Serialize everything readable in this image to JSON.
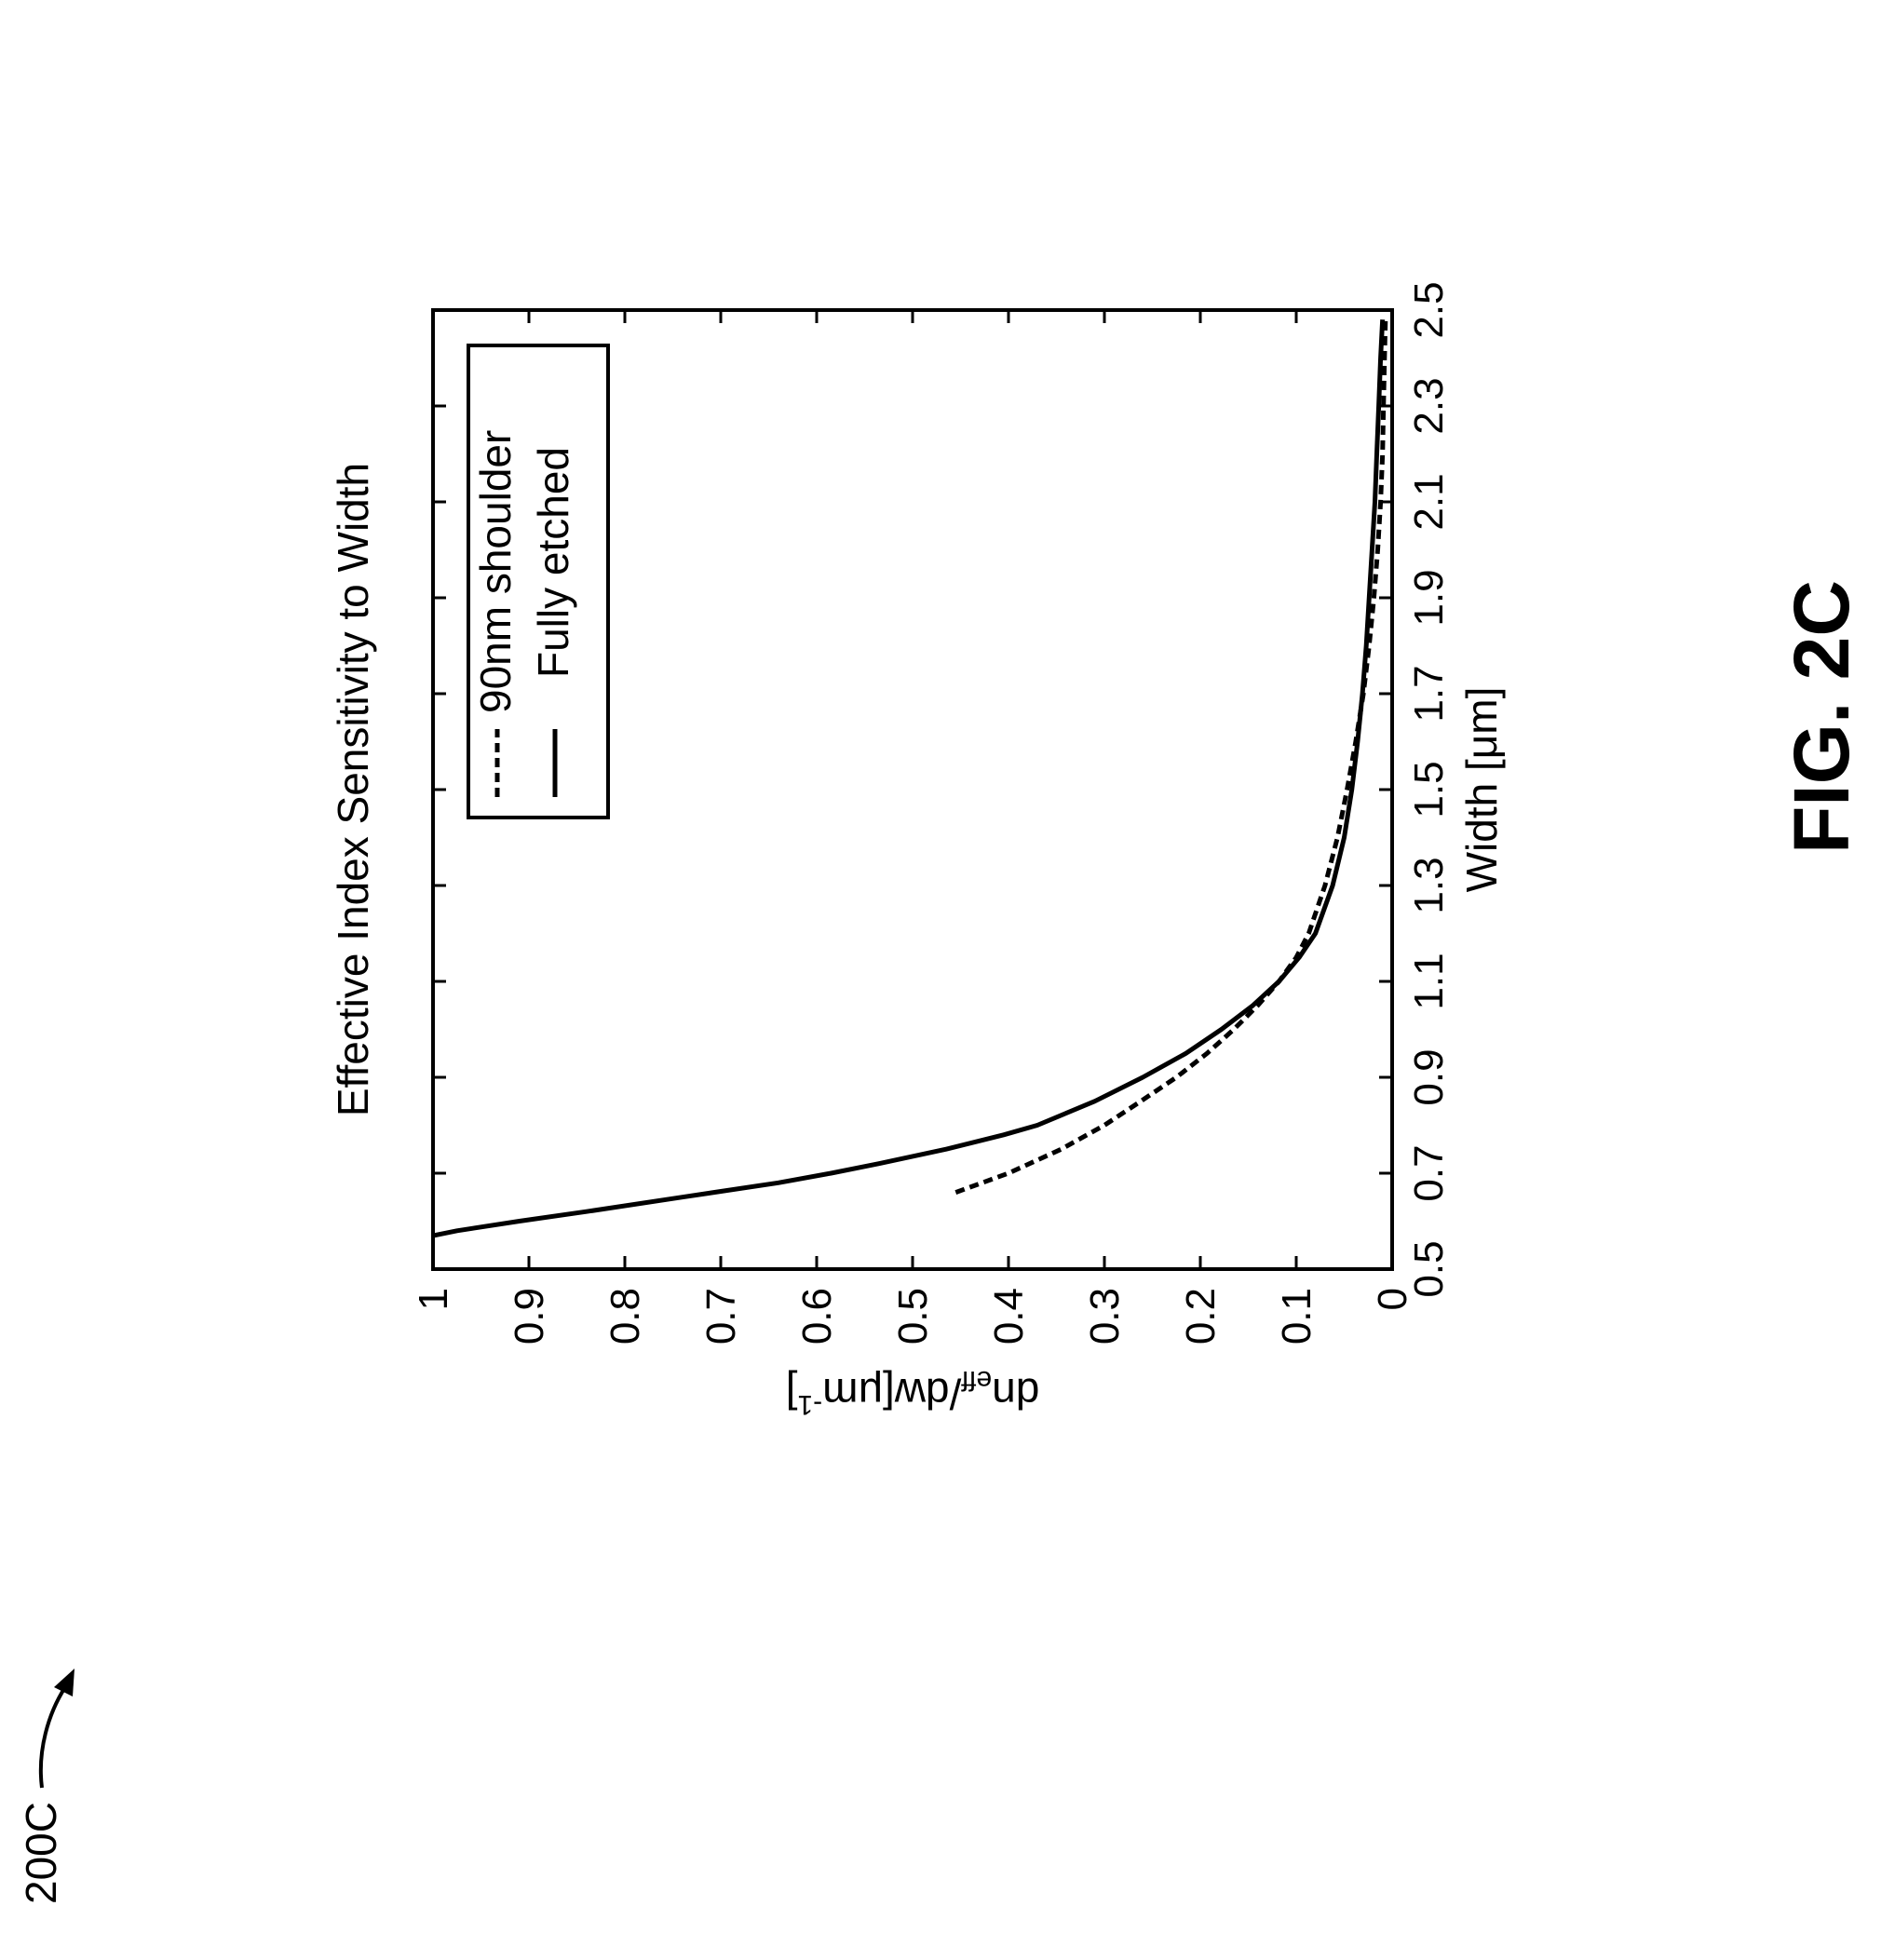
{
  "chart_data": {
    "type": "line",
    "title": "Effective Index Sensitivity to Width",
    "xlabel": "Width [μm]",
    "ylabel": {
      "base": "dn",
      "sub": "eff",
      "mid": "/dw[μm",
      "sup": "-1",
      "end": "]"
    },
    "xlim": [
      0.5,
      2.5
    ],
    "ylim": [
      0,
      1
    ],
    "xticks": [
      "0.5",
      "0.7",
      "0.9",
      "1.1",
      "1.3",
      "1.5",
      "1.7",
      "1.9",
      "2.1",
      "2.3",
      "2.5"
    ],
    "yticks": [
      "0",
      "0.1",
      "0.2",
      "0.3",
      "0.4",
      "0.5",
      "0.6",
      "0.7",
      "0.8",
      "0.9",
      "1"
    ],
    "grid": false,
    "legend_position": "top-right",
    "orientation": "rotated 90° counter-clockwise",
    "series": [
      {
        "name": "90nm shoulder",
        "style": "dashed",
        "x": [
          0.66,
          0.7,
          0.75,
          0.8,
          0.85,
          0.9,
          0.95,
          1.0,
          1.05,
          1.1,
          1.15,
          1.2,
          1.3,
          1.4,
          1.5,
          1.6,
          1.7,
          1.8,
          1.9,
          2.0,
          2.1,
          2.2,
          2.3,
          2.4,
          2.48
        ],
        "y": [
          0.455,
          0.4,
          0.345,
          0.3,
          0.262,
          0.225,
          0.193,
          0.165,
          0.14,
          0.118,
          0.1,
          0.087,
          0.07,
          0.057,
          0.047,
          0.038,
          0.03,
          0.024,
          0.019,
          0.015,
          0.012,
          0.01,
          0.009,
          0.008,
          0.007
        ]
      },
      {
        "name": "Fully etched",
        "style": "solid",
        "x": [
          0.57,
          0.58,
          0.6,
          0.62,
          0.65,
          0.68,
          0.7,
          0.72,
          0.75,
          0.78,
          0.8,
          0.85,
          0.9,
          0.95,
          1.0,
          1.05,
          1.1,
          1.15,
          1.2,
          1.3,
          1.4,
          1.5,
          1.6,
          1.7,
          1.8,
          1.9,
          2.0,
          2.1,
          2.2,
          2.3,
          2.4,
          2.48
        ],
        "y": [
          1.0,
          0.975,
          0.91,
          0.84,
          0.74,
          0.64,
          0.585,
          0.535,
          0.465,
          0.405,
          0.37,
          0.31,
          0.26,
          0.215,
          0.178,
          0.145,
          0.118,
          0.097,
          0.08,
          0.062,
          0.05,
          0.042,
          0.036,
          0.031,
          0.027,
          0.024,
          0.021,
          0.018,
          0.016,
          0.014,
          0.012,
          0.01
        ]
      }
    ]
  },
  "annotations": {
    "figure_label": "FIG. 2C",
    "reference": "200C"
  }
}
